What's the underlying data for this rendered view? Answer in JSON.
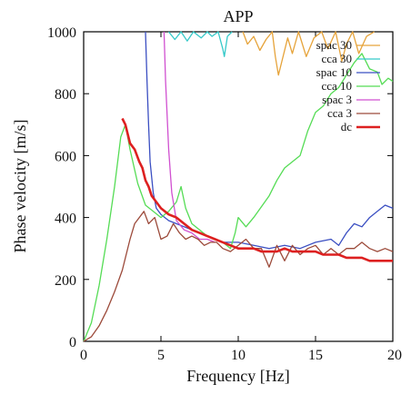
{
  "chart_data": {
    "type": "line",
    "title": "APP",
    "xlabel": "Frequency [Hz]",
    "ylabel": "Phase velocity [m/s]",
    "xlim": [
      0,
      20
    ],
    "ylim": [
      0,
      1000
    ],
    "x_ticks": [
      0,
      5,
      10,
      15,
      20
    ],
    "y_ticks": [
      0,
      200,
      400,
      600,
      800,
      1000
    ],
    "grid": false,
    "legend_position": "top-right",
    "series": [
      {
        "name": "spac 30",
        "color": "#e6a33a",
        "points": [
          [
            10.3,
            1000
          ],
          [
            10.6,
            960
          ],
          [
            11.0,
            985
          ],
          [
            11.4,
            940
          ],
          [
            11.8,
            975
          ],
          [
            12.2,
            1000
          ],
          [
            12.4,
            920
          ],
          [
            12.6,
            860
          ],
          [
            12.8,
            900
          ],
          [
            13.2,
            980
          ],
          [
            13.5,
            930
          ],
          [
            13.9,
            1000
          ],
          [
            14.4,
            920
          ],
          [
            14.9,
            980
          ],
          [
            15.4,
            1000
          ],
          [
            15.8,
            945
          ],
          [
            16.3,
            1000
          ],
          [
            16.7,
            905
          ],
          [
            17.0,
            960
          ],
          [
            17.4,
            1000
          ],
          [
            17.8,
            930
          ],
          [
            18.3,
            985
          ],
          [
            18.8,
            1000
          ]
        ]
      },
      {
        "name": "cca 30",
        "color": "#35c9c9",
        "points": [
          [
            5.5,
            1000
          ],
          [
            5.9,
            975
          ],
          [
            6.3,
            1000
          ],
          [
            6.7,
            970
          ],
          [
            7.1,
            1000
          ],
          [
            7.6,
            980
          ],
          [
            8.0,
            1000
          ],
          [
            8.3,
            985
          ],
          [
            8.7,
            1000
          ],
          [
            9.0,
            945
          ],
          [
            9.1,
            920
          ],
          [
            9.3,
            985
          ],
          [
            9.6,
            1000
          ]
        ]
      },
      {
        "name": "spac 10",
        "color": "#3b4fc2",
        "points": [
          [
            4.0,
            1000
          ],
          [
            4.1,
            840
          ],
          [
            4.2,
            700
          ],
          [
            4.3,
            580
          ],
          [
            4.5,
            480
          ],
          [
            4.7,
            430
          ],
          [
            5.0,
            410
          ],
          [
            5.5,
            390
          ],
          [
            6.0,
            380
          ],
          [
            7.0,
            360
          ],
          [
            8.0,
            340
          ],
          [
            9.0,
            320
          ],
          [
            10.0,
            320
          ],
          [
            11.0,
            310
          ],
          [
            12.0,
            300
          ],
          [
            13.0,
            310
          ],
          [
            14.0,
            300
          ],
          [
            15.0,
            320
          ],
          [
            16.0,
            330
          ],
          [
            16.5,
            310
          ],
          [
            17.0,
            350
          ],
          [
            17.5,
            380
          ],
          [
            18.0,
            370
          ],
          [
            18.5,
            400
          ],
          [
            19.0,
            420
          ],
          [
            19.5,
            440
          ],
          [
            20.0,
            430
          ]
        ]
      },
      {
        "name": "cca 10",
        "color": "#55dc55",
        "points": [
          [
            0,
            0
          ],
          [
            0.5,
            60
          ],
          [
            1.0,
            180
          ],
          [
            1.5,
            330
          ],
          [
            2.0,
            500
          ],
          [
            2.4,
            660
          ],
          [
            2.7,
            700
          ],
          [
            3.0,
            620
          ],
          [
            3.5,
            510
          ],
          [
            4.0,
            440
          ],
          [
            4.5,
            420
          ],
          [
            5.0,
            400
          ],
          [
            5.5,
            420
          ],
          [
            6.0,
            450
          ],
          [
            6.3,
            500
          ],
          [
            6.6,
            430
          ],
          [
            7.0,
            380
          ],
          [
            8.0,
            340
          ],
          [
            8.5,
            330
          ],
          [
            9.0,
            320
          ],
          [
            9.5,
            300
          ],
          [
            9.8,
            350
          ],
          [
            10.0,
            400
          ],
          [
            10.5,
            370
          ],
          [
            11.0,
            400
          ],
          [
            12.0,
            470
          ],
          [
            12.5,
            520
          ],
          [
            13.0,
            560
          ],
          [
            14.0,
            600
          ],
          [
            14.5,
            680
          ],
          [
            15.0,
            740
          ],
          [
            15.5,
            760
          ],
          [
            16.0,
            800
          ],
          [
            16.5,
            820
          ],
          [
            17.0,
            860
          ],
          [
            17.5,
            900
          ],
          [
            18.0,
            930
          ],
          [
            18.5,
            880
          ],
          [
            19.0,
            870
          ],
          [
            19.3,
            830
          ],
          [
            19.7,
            850
          ],
          [
            20.0,
            840
          ]
        ]
      },
      {
        "name": "spac 3",
        "color": "#d050d0",
        "points": [
          [
            5.2,
            1000
          ],
          [
            5.3,
            840
          ],
          [
            5.5,
            620
          ],
          [
            5.7,
            480
          ],
          [
            6.0,
            390
          ],
          [
            6.5,
            360
          ],
          [
            7.0,
            350
          ],
          [
            7.5,
            330
          ],
          [
            8.0,
            330
          ],
          [
            8.5,
            320
          ]
        ]
      },
      {
        "name": "cca 3",
        "color": "#9c4a3a",
        "points": [
          [
            0,
            0
          ],
          [
            0.5,
            15
          ],
          [
            1.0,
            50
          ],
          [
            1.5,
            100
          ],
          [
            2.0,
            160
          ],
          [
            2.5,
            230
          ],
          [
            3.0,
            330
          ],
          [
            3.3,
            380
          ],
          [
            3.6,
            400
          ],
          [
            3.9,
            420
          ],
          [
            4.2,
            380
          ],
          [
            4.6,
            400
          ],
          [
            5.0,
            330
          ],
          [
            5.4,
            340
          ],
          [
            5.8,
            380
          ],
          [
            6.2,
            350
          ],
          [
            6.6,
            330
          ],
          [
            7.0,
            340
          ],
          [
            7.4,
            330
          ],
          [
            7.8,
            310
          ],
          [
            8.2,
            320
          ],
          [
            8.6,
            320
          ],
          [
            9.0,
            300
          ],
          [
            9.5,
            290
          ],
          [
            10.0,
            310
          ],
          [
            10.5,
            330
          ],
          [
            11.0,
            300
          ],
          [
            11.5,
            300
          ],
          [
            12.0,
            240
          ],
          [
            12.5,
            310
          ],
          [
            13.0,
            260
          ],
          [
            13.5,
            310
          ],
          [
            14.0,
            280
          ],
          [
            14.5,
            300
          ],
          [
            15.0,
            310
          ],
          [
            15.5,
            280
          ],
          [
            16.0,
            300
          ],
          [
            16.5,
            280
          ],
          [
            17.0,
            300
          ],
          [
            17.5,
            300
          ],
          [
            18.0,
            320
          ],
          [
            18.5,
            300
          ],
          [
            19.0,
            290
          ],
          [
            19.5,
            300
          ],
          [
            20.0,
            290
          ]
        ]
      },
      {
        "name": "dc",
        "color": "#dd2020",
        "points": [
          [
            2.5,
            720
          ],
          [
            2.7,
            700
          ],
          [
            3.0,
            640
          ],
          [
            3.3,
            620
          ],
          [
            3.6,
            580
          ],
          [
            3.8,
            560
          ],
          [
            4.0,
            520
          ],
          [
            4.2,
            500
          ],
          [
            4.4,
            470
          ],
          [
            4.7,
            450
          ],
          [
            5.0,
            430
          ],
          [
            5.5,
            410
          ],
          [
            6.0,
            400
          ],
          [
            6.5,
            380
          ],
          [
            7.0,
            360
          ],
          [
            7.5,
            350
          ],
          [
            8.0,
            340
          ],
          [
            8.5,
            330
          ],
          [
            9.0,
            320
          ],
          [
            9.5,
            310
          ],
          [
            10.0,
            300
          ],
          [
            10.5,
            300
          ],
          [
            11.0,
            300
          ],
          [
            11.5,
            290
          ],
          [
            12.0,
            290
          ],
          [
            12.5,
            290
          ],
          [
            13.0,
            300
          ],
          [
            13.5,
            290
          ],
          [
            14.0,
            290
          ],
          [
            14.5,
            290
          ],
          [
            15.0,
            290
          ],
          [
            15.5,
            280
          ],
          [
            16.0,
            280
          ],
          [
            16.5,
            280
          ],
          [
            17.0,
            270
          ],
          [
            17.5,
            270
          ],
          [
            18.0,
            270
          ],
          [
            18.5,
            260
          ],
          [
            19.0,
            260
          ],
          [
            19.5,
            260
          ],
          [
            20.0,
            260
          ]
        ]
      }
    ]
  }
}
